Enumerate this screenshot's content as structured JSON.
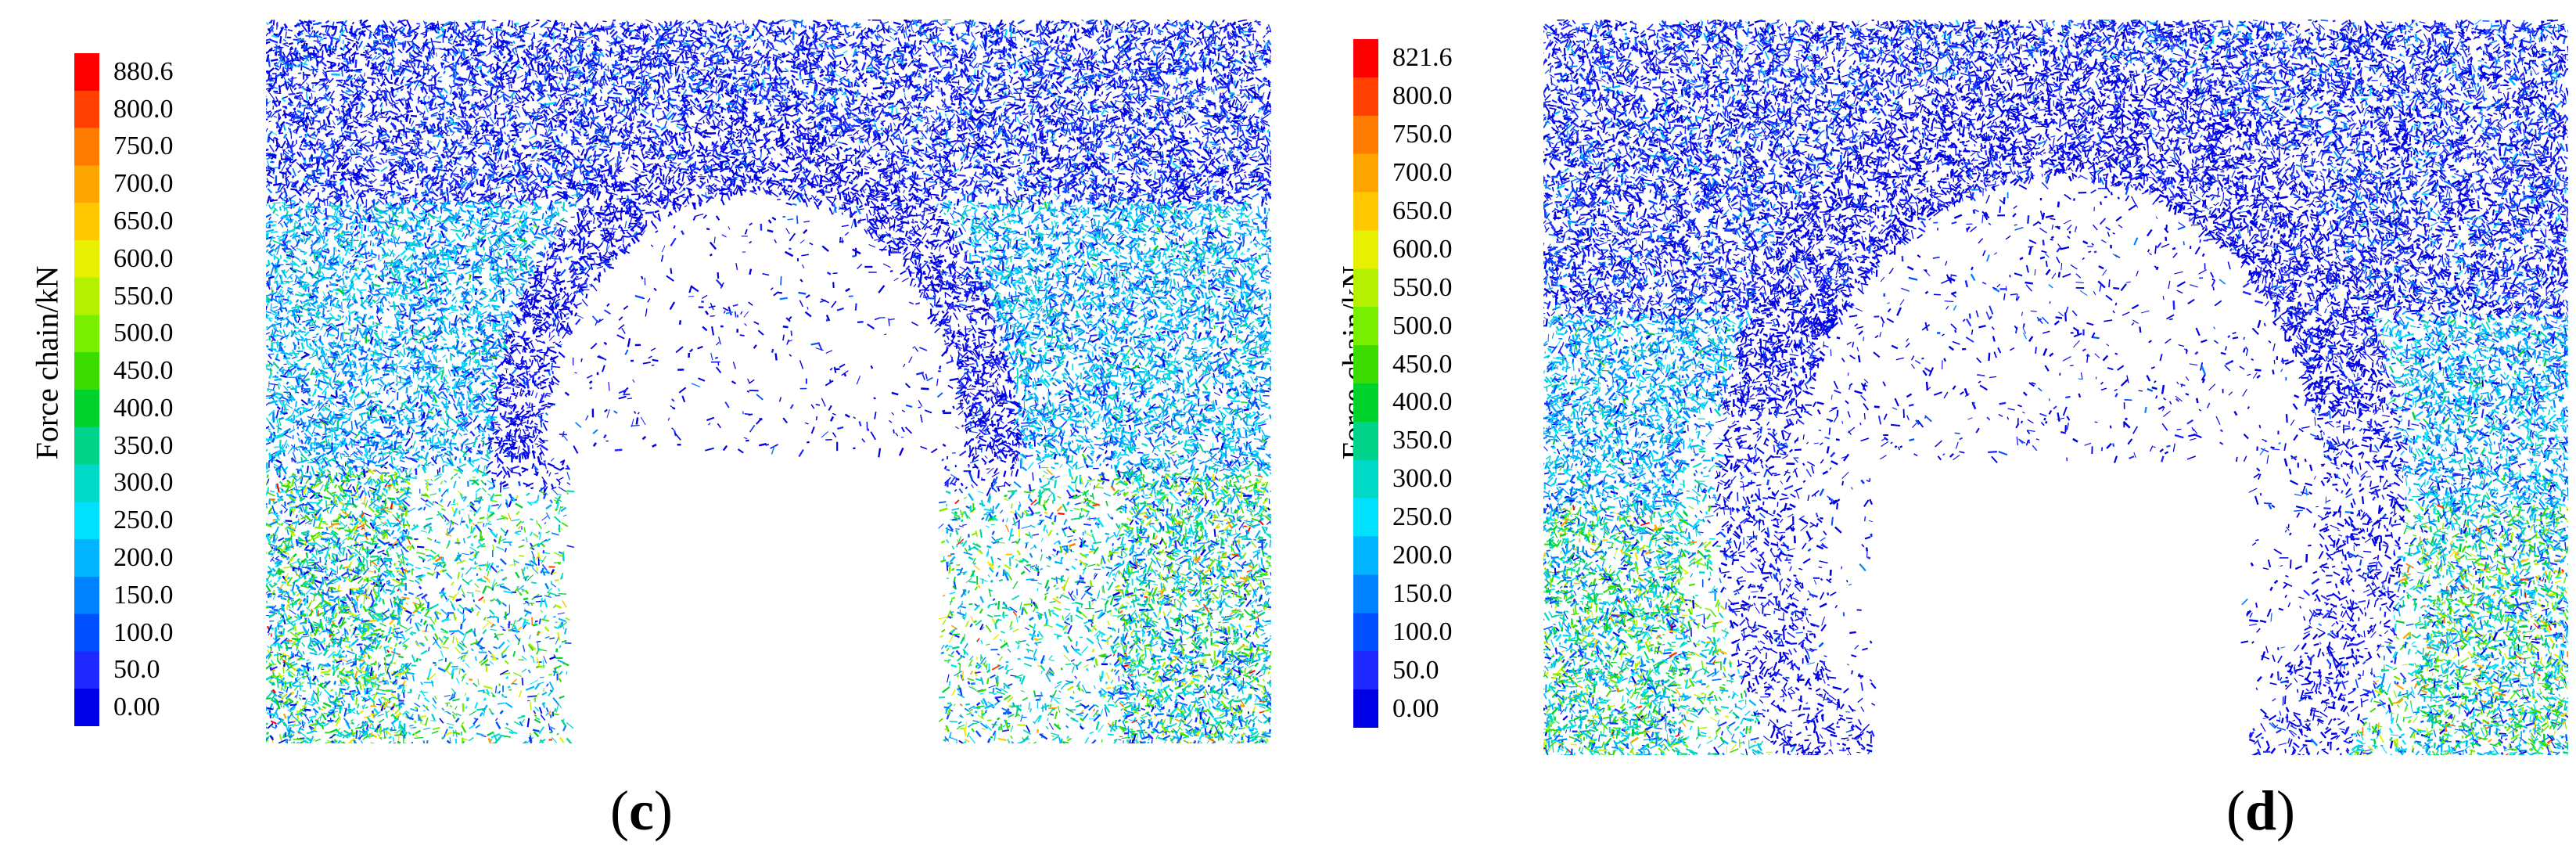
{
  "panels": [
    {
      "id": "c",
      "legend_title": "Force chain/kN",
      "legend_ticks": [
        "880.6",
        "800.0",
        "750.0",
        "700.0",
        "650.0",
        "600.0",
        "550.0",
        "500.0",
        "450.0",
        "400.0",
        "350.0",
        "300.0",
        "250.0",
        "200.0",
        "150.0",
        "100.0",
        "50.0",
        "0.00"
      ],
      "sub_label_open": "(",
      "sub_label_letter": "c",
      "sub_label_close": ")"
    },
    {
      "id": "d",
      "legend_title": "Force chain/kN",
      "legend_ticks": [
        "821.6",
        "800.0",
        "750.0",
        "700.0",
        "650.0",
        "600.0",
        "550.0",
        "500.0",
        "450.0",
        "400.0",
        "350.0",
        "300.0",
        "250.0",
        "200.0",
        "150.0",
        "100.0",
        "50.0",
        "0.00"
      ],
      "sub_label_open": "(",
      "sub_label_letter": "d",
      "sub_label_close": ")"
    }
  ],
  "colors": {
    "scale": [
      "#ff0000",
      "#ff4000",
      "#ff7a00",
      "#ffa500",
      "#ffc800",
      "#e6f000",
      "#b4f000",
      "#78ee00",
      "#3cdc00",
      "#00d22d",
      "#00d38a",
      "#00d8c8",
      "#00e1ff",
      "#00b4ff",
      "#0082ff",
      "#0050ff",
      "#1e28ff",
      "#0000e6"
    ]
  }
}
